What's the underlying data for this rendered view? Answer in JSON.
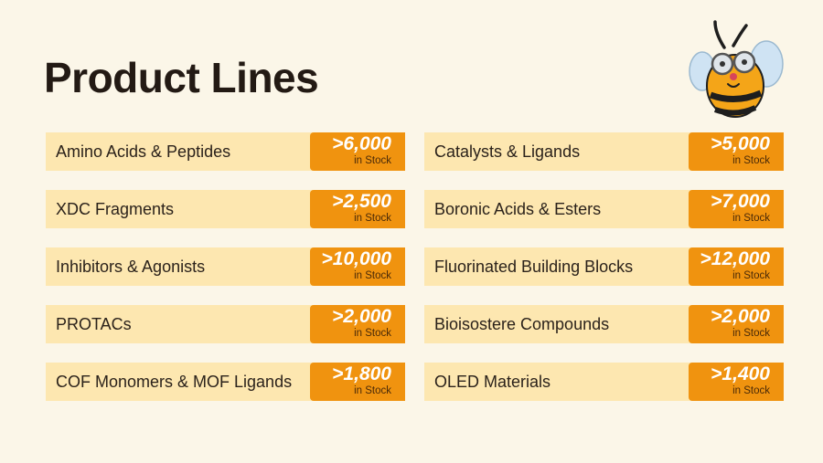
{
  "page": {
    "title": "Product Lines"
  },
  "mascot": {
    "icon": "bee-mascot-icon"
  },
  "colors": {
    "background": "#fbf6e8",
    "row": "#fde7b0",
    "badge": "#f0930f"
  },
  "products": [
    {
      "label": "Amino Acids & Peptides",
      "count": ">6,000",
      "unit": "in Stock"
    },
    {
      "label": "Catalysts & Ligands",
      "count": ">5,000",
      "unit": "in Stock"
    },
    {
      "label": "XDC Fragments",
      "count": ">2,500",
      "unit": "in Stock"
    },
    {
      "label": "Boronic Acids & Esters",
      "count": ">7,000",
      "unit": "in Stock"
    },
    {
      "label": "Inhibitors & Agonists",
      "count": ">10,000",
      "unit": "in Stock"
    },
    {
      "label": "Fluorinated Building Blocks",
      "count": ">12,000",
      "unit": "in Stock"
    },
    {
      "label": "PROTACs",
      "count": ">2,000",
      "unit": "in Stock"
    },
    {
      "label": "Bioisostere Compounds",
      "count": ">2,000",
      "unit": "in Stock"
    },
    {
      "label": "COF Monomers & MOF Ligands",
      "count": ">1,800",
      "unit": "in Stock"
    },
    {
      "label": "OLED Materials",
      "count": ">1,400",
      "unit": "in Stock"
    }
  ]
}
